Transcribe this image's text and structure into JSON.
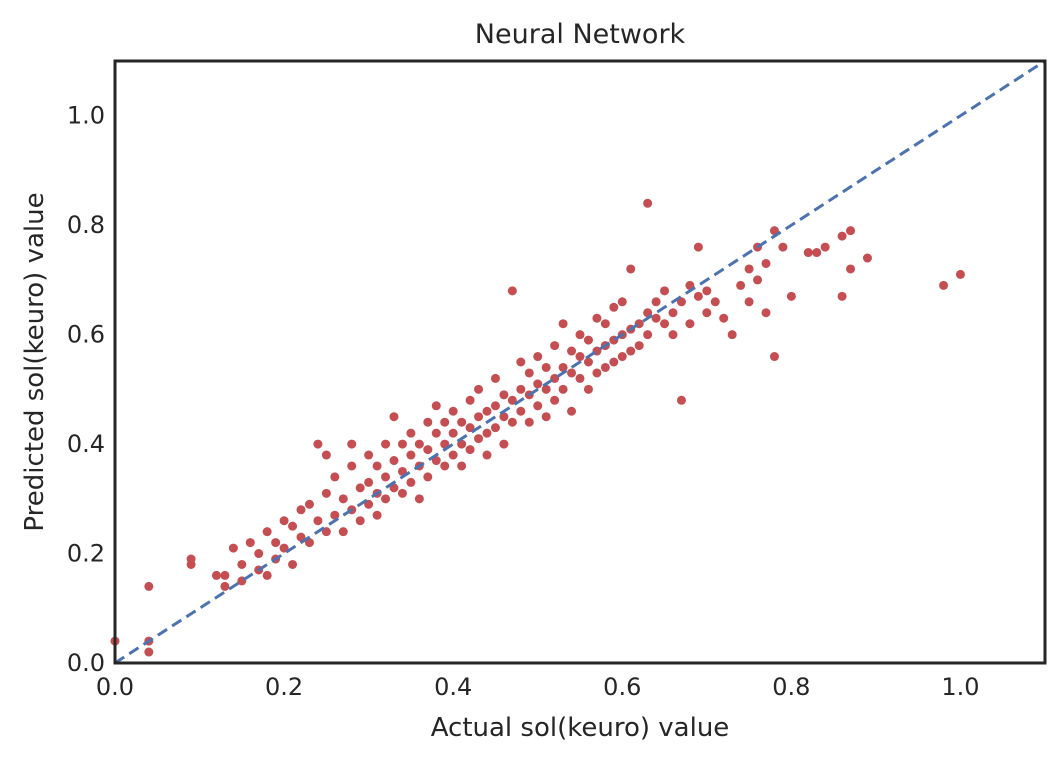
{
  "chart_data": {
    "type": "scatter",
    "title": "Neural Network",
    "xlabel": "Actual sol(keuro) value",
    "ylabel": "Predicted sol(keuro) value",
    "xlim": [
      0.0,
      1.1
    ],
    "ylim": [
      0.0,
      1.1
    ],
    "xticks": [
      0.0,
      0.2,
      0.4,
      0.6,
      0.8,
      1.0
    ],
    "yticks": [
      0.0,
      0.2,
      0.4,
      0.6,
      0.8,
      1.0
    ],
    "xtick_labels": [
      "0.0",
      "0.2",
      "0.4",
      "0.6",
      "0.8",
      "1.0"
    ],
    "ytick_labels": [
      "0.0",
      "0.2",
      "0.4",
      "0.6",
      "0.8",
      "1.0"
    ],
    "grid": false,
    "point_color": "#c44e52",
    "reference_line": {
      "style": "dashed",
      "color": "#4c72b0",
      "from": [
        0.0,
        0.0
      ],
      "to": [
        1.1,
        1.1
      ]
    },
    "points": [
      [
        0.0,
        0.04
      ],
      [
        0.04,
        0.14
      ],
      [
        0.04,
        0.04
      ],
      [
        0.04,
        0.02
      ],
      [
        0.09,
        0.19
      ],
      [
        0.09,
        0.18
      ],
      [
        0.12,
        0.16
      ],
      [
        0.13,
        0.16
      ],
      [
        0.13,
        0.14
      ],
      [
        0.14,
        0.21
      ],
      [
        0.15,
        0.15
      ],
      [
        0.15,
        0.18
      ],
      [
        0.16,
        0.22
      ],
      [
        0.17,
        0.17
      ],
      [
        0.17,
        0.2
      ],
      [
        0.18,
        0.24
      ],
      [
        0.18,
        0.16
      ],
      [
        0.19,
        0.19
      ],
      [
        0.19,
        0.22
      ],
      [
        0.2,
        0.21
      ],
      [
        0.2,
        0.26
      ],
      [
        0.21,
        0.25
      ],
      [
        0.21,
        0.18
      ],
      [
        0.22,
        0.28
      ],
      [
        0.22,
        0.23
      ],
      [
        0.23,
        0.29
      ],
      [
        0.23,
        0.22
      ],
      [
        0.24,
        0.4
      ],
      [
        0.24,
        0.26
      ],
      [
        0.25,
        0.31
      ],
      [
        0.25,
        0.24
      ],
      [
        0.25,
        0.38
      ],
      [
        0.26,
        0.27
      ],
      [
        0.26,
        0.34
      ],
      [
        0.27,
        0.24
      ],
      [
        0.27,
        0.3
      ],
      [
        0.28,
        0.28
      ],
      [
        0.28,
        0.36
      ],
      [
        0.28,
        0.4
      ],
      [
        0.29,
        0.32
      ],
      [
        0.29,
        0.26
      ],
      [
        0.3,
        0.33
      ],
      [
        0.3,
        0.29
      ],
      [
        0.3,
        0.38
      ],
      [
        0.31,
        0.31
      ],
      [
        0.31,
        0.36
      ],
      [
        0.31,
        0.27
      ],
      [
        0.32,
        0.34
      ],
      [
        0.32,
        0.4
      ],
      [
        0.32,
        0.3
      ],
      [
        0.33,
        0.37
      ],
      [
        0.33,
        0.32
      ],
      [
        0.33,
        0.45
      ],
      [
        0.34,
        0.35
      ],
      [
        0.34,
        0.31
      ],
      [
        0.34,
        0.4
      ],
      [
        0.35,
        0.38
      ],
      [
        0.35,
        0.33
      ],
      [
        0.35,
        0.42
      ],
      [
        0.36,
        0.36
      ],
      [
        0.36,
        0.4
      ],
      [
        0.36,
        0.3
      ],
      [
        0.37,
        0.39
      ],
      [
        0.37,
        0.44
      ],
      [
        0.37,
        0.34
      ],
      [
        0.38,
        0.37
      ],
      [
        0.38,
        0.42
      ],
      [
        0.38,
        0.47
      ],
      [
        0.39,
        0.4
      ],
      [
        0.39,
        0.36
      ],
      [
        0.39,
        0.44
      ],
      [
        0.4,
        0.42
      ],
      [
        0.4,
        0.38
      ],
      [
        0.4,
        0.46
      ],
      [
        0.41,
        0.4
      ],
      [
        0.41,
        0.44
      ],
      [
        0.41,
        0.36
      ],
      [
        0.42,
        0.43
      ],
      [
        0.42,
        0.48
      ],
      [
        0.42,
        0.39
      ],
      [
        0.43,
        0.45
      ],
      [
        0.43,
        0.41
      ],
      [
        0.43,
        0.5
      ],
      [
        0.44,
        0.42
      ],
      [
        0.44,
        0.46
      ],
      [
        0.44,
        0.38
      ],
      [
        0.45,
        0.47
      ],
      [
        0.45,
        0.43
      ],
      [
        0.45,
        0.52
      ],
      [
        0.46,
        0.45
      ],
      [
        0.46,
        0.49
      ],
      [
        0.46,
        0.4
      ],
      [
        0.47,
        0.48
      ],
      [
        0.47,
        0.44
      ],
      [
        0.47,
        0.68
      ],
      [
        0.48,
        0.5
      ],
      [
        0.48,
        0.46
      ],
      [
        0.48,
        0.55
      ],
      [
        0.49,
        0.49
      ],
      [
        0.49,
        0.53
      ],
      [
        0.49,
        0.44
      ],
      [
        0.5,
        0.51
      ],
      [
        0.5,
        0.47
      ],
      [
        0.5,
        0.56
      ],
      [
        0.51,
        0.5
      ],
      [
        0.51,
        0.54
      ],
      [
        0.51,
        0.45
      ],
      [
        0.52,
        0.52
      ],
      [
        0.52,
        0.48
      ],
      [
        0.52,
        0.58
      ],
      [
        0.53,
        0.54
      ],
      [
        0.53,
        0.5
      ],
      [
        0.53,
        0.62
      ],
      [
        0.54,
        0.53
      ],
      [
        0.54,
        0.57
      ],
      [
        0.54,
        0.46
      ],
      [
        0.55,
        0.56
      ],
      [
        0.55,
        0.52
      ],
      [
        0.55,
        0.6
      ],
      [
        0.56,
        0.55
      ],
      [
        0.56,
        0.59
      ],
      [
        0.56,
        0.5
      ],
      [
        0.57,
        0.57
      ],
      [
        0.57,
        0.53
      ],
      [
        0.57,
        0.63
      ],
      [
        0.58,
        0.58
      ],
      [
        0.58,
        0.54
      ],
      [
        0.58,
        0.62
      ],
      [
        0.59,
        0.59
      ],
      [
        0.59,
        0.55
      ],
      [
        0.59,
        0.65
      ],
      [
        0.6,
        0.6
      ],
      [
        0.6,
        0.56
      ],
      [
        0.6,
        0.66
      ],
      [
        0.61,
        0.61
      ],
      [
        0.61,
        0.57
      ],
      [
        0.61,
        0.72
      ],
      [
        0.62,
        0.62
      ],
      [
        0.62,
        0.58
      ],
      [
        0.63,
        0.64
      ],
      [
        0.63,
        0.6
      ],
      [
        0.63,
        0.84
      ],
      [
        0.64,
        0.63
      ],
      [
        0.64,
        0.66
      ],
      [
        0.65,
        0.62
      ],
      [
        0.65,
        0.68
      ],
      [
        0.66,
        0.64
      ],
      [
        0.66,
        0.6
      ],
      [
        0.67,
        0.66
      ],
      [
        0.67,
        0.48
      ],
      [
        0.68,
        0.69
      ],
      [
        0.68,
        0.62
      ],
      [
        0.69,
        0.67
      ],
      [
        0.69,
        0.76
      ],
      [
        0.7,
        0.64
      ],
      [
        0.7,
        0.68
      ],
      [
        0.71,
        0.66
      ],
      [
        0.72,
        0.63
      ],
      [
        0.73,
        0.6
      ],
      [
        0.74,
        0.69
      ],
      [
        0.75,
        0.72
      ],
      [
        0.75,
        0.66
      ],
      [
        0.76,
        0.76
      ],
      [
        0.76,
        0.7
      ],
      [
        0.77,
        0.64
      ],
      [
        0.77,
        0.73
      ],
      [
        0.78,
        0.79
      ],
      [
        0.78,
        0.56
      ],
      [
        0.79,
        0.76
      ],
      [
        0.8,
        0.67
      ],
      [
        0.82,
        0.75
      ],
      [
        0.83,
        0.75
      ],
      [
        0.84,
        0.76
      ],
      [
        0.86,
        0.67
      ],
      [
        0.86,
        0.78
      ],
      [
        0.87,
        0.79
      ],
      [
        0.87,
        0.72
      ],
      [
        0.89,
        0.74
      ],
      [
        0.98,
        0.69
      ],
      [
        1.0,
        0.71
      ]
    ]
  }
}
